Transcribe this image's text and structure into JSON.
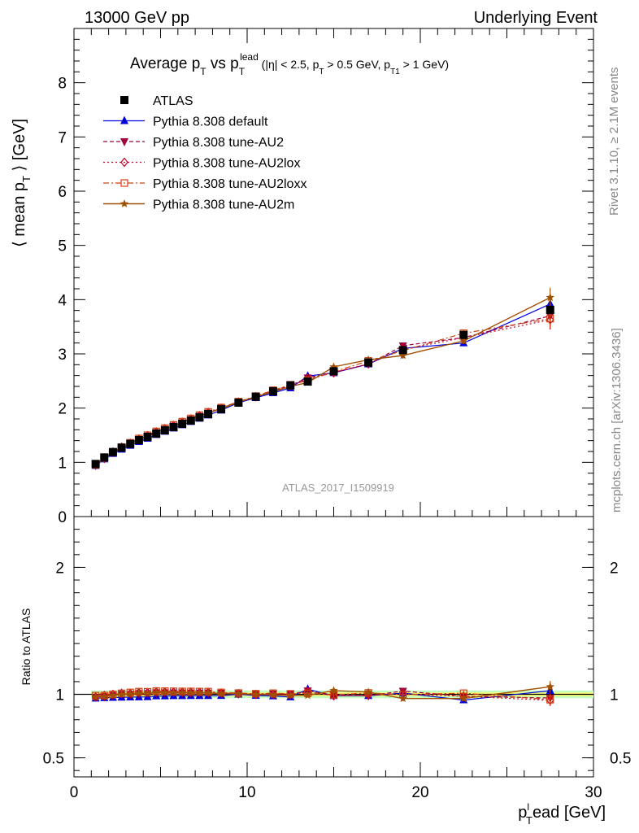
{
  "header": {
    "left": "13000 GeV pp",
    "right": "Underlying Event"
  },
  "side_text": {
    "rivet": "Rivet 3.1.10, ≥ 2.1M events",
    "mcplots": "mcplots.cern.ch [arXiv:1306.3436]"
  },
  "watermark": "ATLAS_2017_I1509919",
  "colors": {
    "ATLAS": "#000000",
    "default": "#0000dd",
    "AU2": "#a0003c",
    "AU2lox": "#c0002a",
    "AU2loxx": "#d04010",
    "AU2m": "#a05000",
    "band_inner": "#fdfd7a",
    "band_outer": "#bfffbf"
  },
  "chart_data": {
    "type": "line",
    "title": {
      "lead": "Average p",
      "lead_sub": "T",
      "mid": " vs p",
      "mid_sub": "T",
      "mid_sup": "lead",
      "cuts_1": " (|η| < 2.5, p",
      "cuts_1_sub": "T",
      "cuts_2": " > 0.5 GeV, p",
      "cuts_2_sub": "T1",
      "cuts_3": " > 1 GeV)"
    },
    "ylabel": {
      "main": "⟨ mean p",
      "sub": "T",
      "tail": " ⟩ [GeV]"
    },
    "ratio_ylabel": "Ratio to ATLAS",
    "xlabel": {
      "main": "p",
      "sup": "l",
      "sub": "T",
      "tail": "ead [GeV]"
    },
    "xlim": [
      0,
      30
    ],
    "ylim": [
      0,
      9
    ],
    "ratio_ylim": [
      0.35,
      2.4
    ],
    "x_ticks": [
      0,
      10,
      20,
      30
    ],
    "y_ticks": [
      0,
      1,
      2,
      3,
      4,
      5,
      6,
      7,
      8
    ],
    "ratio_ticks": [
      0.5,
      1,
      2
    ],
    "legend_position": "top-left",
    "x": [
      1.25,
      1.75,
      2.25,
      2.75,
      3.25,
      3.75,
      4.25,
      4.75,
      5.25,
      5.75,
      6.25,
      6.75,
      7.25,
      7.75,
      8.5,
      9.5,
      10.5,
      11.5,
      12.5,
      13.5,
      15,
      17,
      19,
      22.5,
      27.5
    ],
    "series": [
      {
        "name": "ATLAS",
        "key": "ATLAS",
        "values": [
          0.97,
          1.09,
          1.19,
          1.27,
          1.34,
          1.41,
          1.47,
          1.53,
          1.59,
          1.65,
          1.71,
          1.77,
          1.83,
          1.89,
          1.98,
          2.1,
          2.21,
          2.31,
          2.42,
          2.49,
          2.68,
          2.84,
          3.07,
          3.35,
          3.81
        ]
      },
      {
        "name": "Pythia 8.308 default",
        "key": "default",
        "values": [
          0.94,
          1.06,
          1.16,
          1.24,
          1.31,
          1.38,
          1.44,
          1.51,
          1.57,
          1.63,
          1.69,
          1.75,
          1.81,
          1.87,
          1.96,
          2.1,
          2.19,
          2.28,
          2.37,
          2.59,
          2.65,
          2.81,
          3.1,
          3.2,
          3.92
        ]
      },
      {
        "name": "Pythia 8.308 tune-AU2",
        "key": "AU2",
        "values": [
          0.95,
          1.07,
          1.18,
          1.27,
          1.34,
          1.42,
          1.48,
          1.55,
          1.61,
          1.67,
          1.73,
          1.79,
          1.85,
          1.91,
          2.0,
          2.11,
          2.21,
          2.32,
          2.42,
          2.56,
          2.66,
          2.81,
          3.15,
          3.3,
          3.7
        ]
      },
      {
        "name": "Pythia 8.308 tune-AU2lox",
        "key": "AU2lox",
        "values": [
          0.95,
          1.08,
          1.19,
          1.28,
          1.35,
          1.43,
          1.49,
          1.56,
          1.62,
          1.68,
          1.74,
          1.8,
          1.86,
          1.92,
          2.0,
          2.11,
          2.21,
          2.31,
          2.41,
          2.54,
          2.65,
          2.82,
          3.08,
          3.3,
          3.63
        ]
      },
      {
        "name": "Pythia 8.308 tune-AU2loxx",
        "key": "AU2loxx",
        "values": [
          0.96,
          1.08,
          1.19,
          1.28,
          1.36,
          1.44,
          1.5,
          1.57,
          1.63,
          1.69,
          1.75,
          1.81,
          1.87,
          1.93,
          2.01,
          2.12,
          2.22,
          2.33,
          2.43,
          2.51,
          2.67,
          2.87,
          3.06,
          3.38,
          3.65
        ]
      },
      {
        "name": "Pythia 8.308 tune-AU2m",
        "key": "AU2m",
        "values": [
          0.95,
          1.07,
          1.18,
          1.27,
          1.34,
          1.42,
          1.48,
          1.55,
          1.61,
          1.67,
          1.73,
          1.79,
          1.85,
          1.91,
          1.99,
          2.11,
          2.21,
          2.3,
          2.4,
          2.47,
          2.76,
          2.89,
          2.97,
          3.24,
          4.04
        ]
      }
    ],
    "ratio_series": [
      {
        "key": "default",
        "values": [
          0.969,
          0.972,
          0.975,
          0.976,
          0.978,
          0.979,
          0.98,
          0.987,
          0.987,
          0.988,
          0.988,
          0.989,
          0.989,
          0.989,
          0.99,
          1.0,
          0.991,
          0.987,
          0.979,
          1.04,
          0.989,
          0.989,
          1.01,
          0.955,
          1.029
        ]
      },
      {
        "key": "AU2",
        "values": [
          0.979,
          0.982,
          0.992,
          1.0,
          1.0,
          1.007,
          1.007,
          1.013,
          1.013,
          1.012,
          1.012,
          1.011,
          1.011,
          1.011,
          1.01,
          1.005,
          1.0,
          1.004,
          1.0,
          1.028,
          0.993,
          0.989,
          1.026,
          0.985,
          0.971
        ]
      },
      {
        "key": "AU2lox",
        "values": [
          0.979,
          0.991,
          1.0,
          1.008,
          1.007,
          1.014,
          1.014,
          1.02,
          1.019,
          1.018,
          1.018,
          1.017,
          1.016,
          1.016,
          1.01,
          1.005,
          1.0,
          1.0,
          0.996,
          1.02,
          0.989,
          0.993,
          1.003,
          0.985,
          0.953
        ]
      },
      {
        "key": "AU2loxx",
        "values": [
          0.99,
          0.991,
          1.0,
          1.008,
          1.015,
          1.021,
          1.02,
          1.026,
          1.025,
          1.024,
          1.023,
          1.023,
          1.022,
          1.021,
          1.015,
          1.01,
          1.005,
          1.009,
          1.004,
          1.008,
          0.996,
          1.011,
          0.997,
          1.009,
          0.958
        ]
      },
      {
        "key": "AU2m",
        "values": [
          0.979,
          0.982,
          0.992,
          1.0,
          1.0,
          1.007,
          1.007,
          1.013,
          1.013,
          1.012,
          1.012,
          1.011,
          1.011,
          1.011,
          1.005,
          1.005,
          1.0,
          0.996,
          0.992,
          0.992,
          1.03,
          1.018,
          0.967,
          0.967,
          1.06
        ]
      }
    ]
  }
}
